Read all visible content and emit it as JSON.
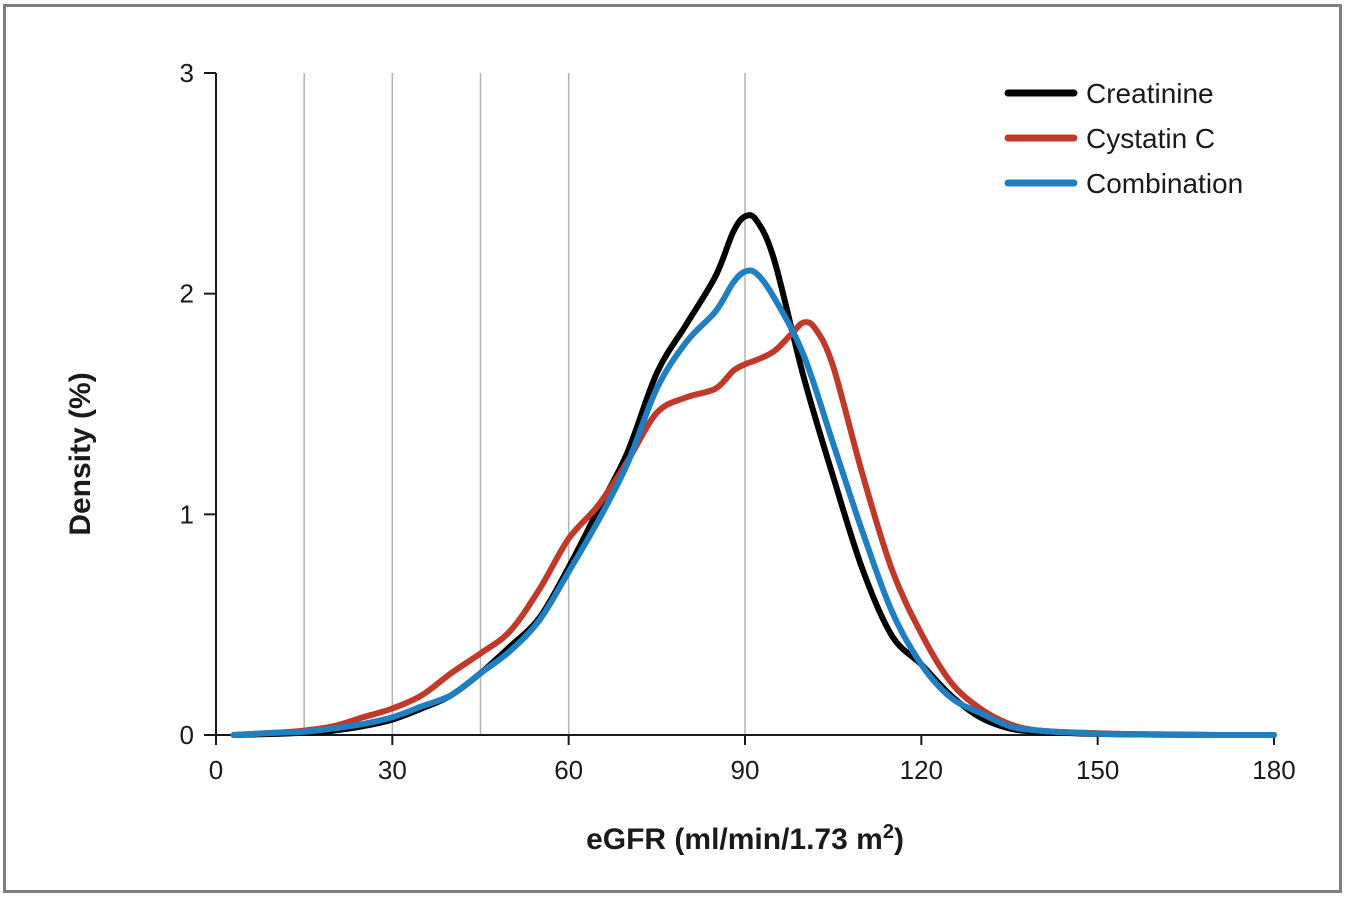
{
  "chart_data": {
    "type": "line",
    "xlabel": "eGFR (ml/min/1.73 m²)",
    "xlabel_main": "eGFR (ml/min/1.73 m",
    "xlabel_sup": "2",
    "xlabel_tail": ")",
    "ylabel": "Density (%)",
    "xlim": [
      0,
      180
    ],
    "ylim": [
      0,
      3
    ],
    "xticks": [
      0,
      30,
      60,
      90,
      120,
      150,
      180
    ],
    "xtick_labels": [
      "0",
      "30",
      "60",
      "90",
      "120",
      "150",
      "180"
    ],
    "yticks": [
      0,
      1,
      2,
      3
    ],
    "ytick_labels": [
      "0",
      "1",
      "2",
      "3"
    ],
    "vertical_reference_lines": [
      15,
      30,
      45,
      60,
      90
    ],
    "grid": false,
    "legend_position": "top-right",
    "series": [
      {
        "name": "Creatinine",
        "color": "#000000",
        "x": [
          3,
          10,
          15,
          20,
          25,
          30,
          35,
          40,
          45,
          50,
          55,
          60,
          65,
          70,
          75,
          80,
          85,
          88,
          90,
          92,
          95,
          100,
          105,
          110,
          115,
          120,
          125,
          130,
          135,
          140,
          150,
          160,
          170,
          180
        ],
        "y": [
          0.0,
          0.005,
          0.01,
          0.02,
          0.04,
          0.07,
          0.12,
          0.18,
          0.28,
          0.4,
          0.53,
          0.76,
          1.02,
          1.28,
          1.64,
          1.86,
          2.08,
          2.28,
          2.35,
          2.33,
          2.15,
          1.62,
          1.17,
          0.75,
          0.45,
          0.32,
          0.18,
          0.08,
          0.03,
          0.015,
          0.005,
          0.002,
          0.0,
          0.0
        ]
      },
      {
        "name": "Cystatin C",
        "color": "#c0392b",
        "x": [
          3,
          10,
          15,
          20,
          25,
          30,
          35,
          40,
          45,
          50,
          55,
          60,
          65,
          70,
          75,
          80,
          85,
          88,
          90,
          92,
          95,
          98,
          100,
          102,
          105,
          110,
          115,
          120,
          125,
          130,
          135,
          140,
          150,
          160,
          170,
          180
        ],
        "y": [
          0.0,
          0.01,
          0.02,
          0.04,
          0.08,
          0.12,
          0.18,
          0.28,
          0.37,
          0.47,
          0.66,
          0.89,
          1.04,
          1.24,
          1.46,
          1.53,
          1.57,
          1.65,
          1.68,
          1.7,
          1.74,
          1.82,
          1.87,
          1.84,
          1.67,
          1.18,
          0.75,
          0.46,
          0.24,
          0.12,
          0.05,
          0.02,
          0.008,
          0.003,
          0.0,
          0.0
        ]
      },
      {
        "name": "Combination",
        "color": "#1f7fc1",
        "x": [
          3,
          10,
          15,
          20,
          25,
          30,
          35,
          40,
          45,
          50,
          55,
          60,
          65,
          70,
          75,
          80,
          85,
          88,
          90,
          92,
          95,
          100,
          105,
          110,
          115,
          120,
          125,
          130,
          135,
          140,
          150,
          160,
          170,
          180
        ],
        "y": [
          0.0,
          0.01,
          0.015,
          0.03,
          0.05,
          0.08,
          0.13,
          0.18,
          0.28,
          0.38,
          0.52,
          0.74,
          0.97,
          1.23,
          1.57,
          1.78,
          1.92,
          2.05,
          2.1,
          2.09,
          1.98,
          1.72,
          1.32,
          0.92,
          0.56,
          0.32,
          0.17,
          0.1,
          0.04,
          0.02,
          0.006,
          0.002,
          0.0,
          0.0
        ]
      }
    ]
  }
}
